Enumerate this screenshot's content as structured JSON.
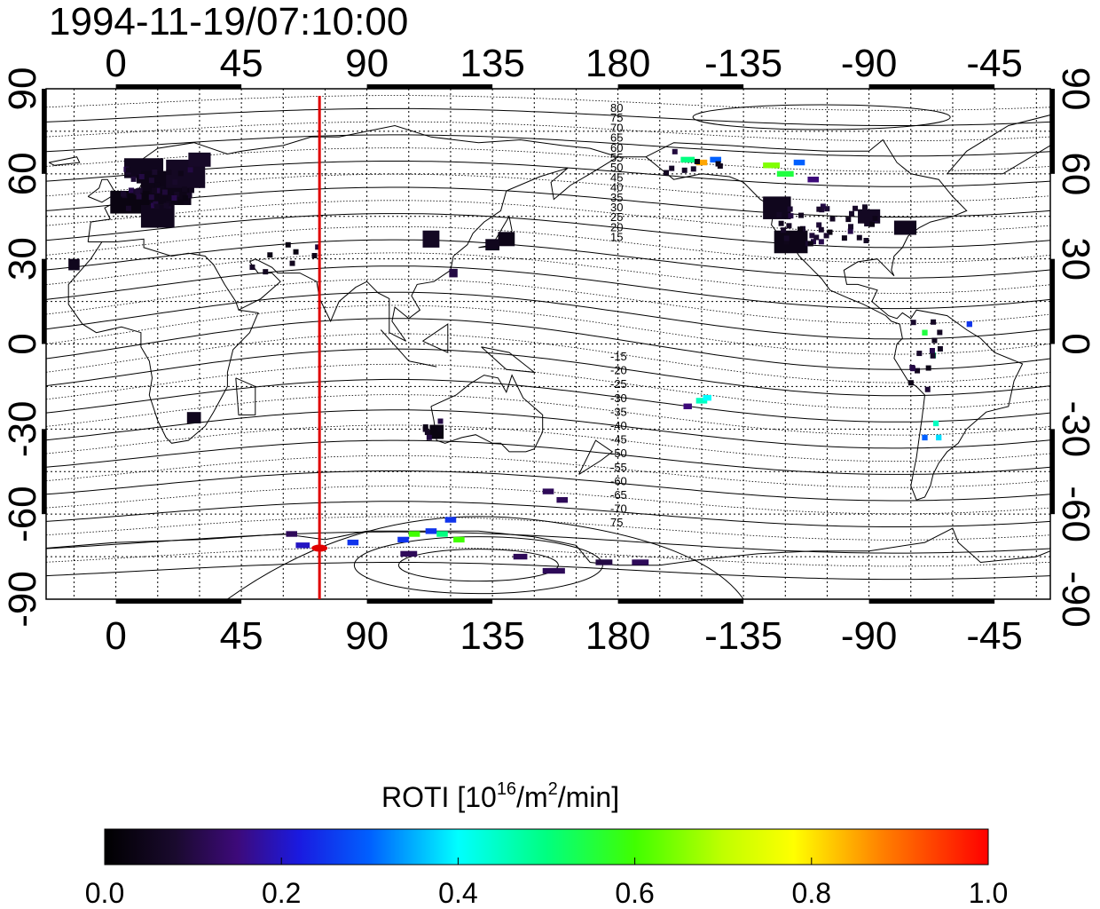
{
  "title": "1994-11-19/07:10:00",
  "lon_ticks": [
    "0",
    "45",
    "90",
    "135",
    "180",
    "-135",
    "-90",
    "-45"
  ],
  "lat_ticks": [
    "90",
    "60",
    "30",
    "0",
    "-30",
    "-60",
    "-90"
  ],
  "contour_labels_north": [
    "80",
    "75",
    "70",
    "65",
    "60",
    "55",
    "50",
    "45",
    "40",
    "35",
    "30",
    "25",
    "20",
    "15"
  ],
  "contour_labels_south": [
    "-15",
    "-20",
    "-25",
    "-30",
    "-35",
    "-40",
    "-45",
    "-50",
    "-55",
    "-60",
    "-65",
    "-70",
    "75"
  ],
  "colorbar": {
    "label_main": "ROTI  [10",
    "label_sup1": "16",
    "label_mid": "/m",
    "label_sup2": "2",
    "label_end": "/min]",
    "ticks": [
      "0.0",
      "0.2",
      "0.4",
      "0.6",
      "0.8",
      "1.0"
    ],
    "range": [
      0.0,
      1.0
    ]
  },
  "map": {
    "projection": "equirectangular",
    "lon_range_shifted": [
      -25,
      335
    ],
    "lat_range": [
      -90,
      90
    ],
    "grid_step_deg": 15,
    "red_meridian_lon": 73,
    "red_marker": {
      "lon": 73,
      "lat": -72
    }
  },
  "observations": [
    {
      "lon": 10,
      "lat": 62,
      "w": 14,
      "h": 7,
      "v": 0.05
    },
    {
      "lon": 18,
      "lat": 55,
      "w": 18,
      "h": 12,
      "v": 0.04
    },
    {
      "lon": 25,
      "lat": 60,
      "w": 14,
      "h": 10,
      "v": 0.06
    },
    {
      "lon": 5,
      "lat": 50,
      "w": 14,
      "h": 8,
      "v": 0.03
    },
    {
      "lon": 15,
      "lat": 45,
      "w": 12,
      "h": 8,
      "v": 0.05
    },
    {
      "lon": 30,
      "lat": 65,
      "w": 8,
      "h": 5,
      "v": 0.07
    },
    {
      "lon": -15,
      "lat": 28,
      "w": 4,
      "h": 4,
      "v": 0.05
    },
    {
      "lon": 113,
      "lat": 37,
      "w": 6,
      "h": 6,
      "v": 0.06
    },
    {
      "lon": 140,
      "lat": 37,
      "w": 6,
      "h": 5,
      "v": 0.04
    },
    {
      "lon": 135,
      "lat": 35,
      "w": 5,
      "h": 4,
      "v": 0.05
    },
    {
      "lon": 121,
      "lat": 25,
      "w": 3,
      "h": 3,
      "v": 0.1
    },
    {
      "lon": 28,
      "lat": -26,
      "w": 5,
      "h": 4,
      "v": 0.05
    },
    {
      "lon": 115,
      "lat": -31,
      "w": 5,
      "h": 5,
      "v": 0.03
    },
    {
      "lon": 205,
      "lat": 65,
      "w": 5,
      "h": 2,
      "v": 0.5
    },
    {
      "lon": 210,
      "lat": 64,
      "w": 4,
      "h": 2,
      "v": 0.85
    },
    {
      "lon": 215,
      "lat": 65,
      "w": 4,
      "h": 2,
      "v": 0.3
    },
    {
      "lon": 235,
      "lat": 63,
      "w": 6,
      "h": 2,
      "v": 0.65
    },
    {
      "lon": 240,
      "lat": 60,
      "w": 6,
      "h": 2,
      "v": 0.55
    },
    {
      "lon": 245,
      "lat": 64,
      "w": 4,
      "h": 2,
      "v": 0.3
    },
    {
      "lon": 250,
      "lat": 58,
      "w": 4,
      "h": 2,
      "v": 0.15
    },
    {
      "lon": 237,
      "lat": 48,
      "w": 10,
      "h": 8,
      "v": 0.05
    },
    {
      "lon": 242,
      "lat": 36,
      "w": 12,
      "h": 8,
      "v": 0.04
    },
    {
      "lon": 270,
      "lat": 45,
      "w": 8,
      "h": 5,
      "v": 0.06
    },
    {
      "lon": 283,
      "lat": 41,
      "w": 8,
      "h": 5,
      "v": 0.05
    },
    {
      "lon": 210,
      "lat": -20,
      "w": 4,
      "h": 2,
      "v": 0.45
    },
    {
      "lon": 205,
      "lat": -22,
      "w": 3,
      "h": 2,
      "v": 0.15
    },
    {
      "lon": 212,
      "lat": -19,
      "w": 3,
      "h": 2,
      "v": 0.4
    },
    {
      "lon": 290,
      "lat": 4,
      "w": 2,
      "h": 2,
      "v": 0.55
    },
    {
      "lon": 293,
      "lat": -4,
      "w": 2,
      "h": 2,
      "v": 0.5
    },
    {
      "lon": 290,
      "lat": -33,
      "w": 2,
      "h": 2,
      "v": 0.3
    },
    {
      "lon": 294,
      "lat": -28,
      "w": 2,
      "h": 2,
      "v": 0.45
    },
    {
      "lon": 295,
      "lat": -33,
      "w": 2,
      "h": 2,
      "v": 0.38
    },
    {
      "lon": 306,
      "lat": 7,
      "w": 2,
      "h": 2,
      "v": 0.25
    },
    {
      "lon": 63,
      "lat": -67,
      "w": 4,
      "h": 2,
      "v": 0.12
    },
    {
      "lon": 67,
      "lat": -71,
      "w": 5,
      "h": 2,
      "v": 0.2
    },
    {
      "lon": 85,
      "lat": -70,
      "w": 4,
      "h": 2,
      "v": 0.25
    },
    {
      "lon": 107,
      "lat": -67,
      "w": 4,
      "h": 2,
      "v": 0.6
    },
    {
      "lon": 113,
      "lat": -66,
      "w": 4,
      "h": 2,
      "v": 0.25
    },
    {
      "lon": 117,
      "lat": -67,
      "w": 4,
      "h": 2,
      "v": 0.5
    },
    {
      "lon": 120,
      "lat": -62,
      "w": 4,
      "h": 2,
      "v": 0.25
    },
    {
      "lon": 123,
      "lat": -69,
      "w": 4,
      "h": 2,
      "v": 0.6
    },
    {
      "lon": 103,
      "lat": -69,
      "w": 4,
      "h": 2,
      "v": 0.25
    },
    {
      "lon": 105,
      "lat": -74,
      "w": 6,
      "h": 2,
      "v": 0.12
    },
    {
      "lon": 145,
      "lat": -75,
      "w": 5,
      "h": 2,
      "v": 0.12
    },
    {
      "lon": 157,
      "lat": -80,
      "w": 8,
      "h": 2,
      "v": 0.12
    },
    {
      "lon": 175,
      "lat": -77,
      "w": 6,
      "h": 2,
      "v": 0.1
    },
    {
      "lon": 188,
      "lat": -77,
      "w": 6,
      "h": 2,
      "v": 0.12
    },
    {
      "lon": 160,
      "lat": -55,
      "w": 4,
      "h": 2,
      "v": 0.12
    },
    {
      "lon": 155,
      "lat": -52,
      "w": 4,
      "h": 2,
      "v": 0.12
    }
  ]
}
